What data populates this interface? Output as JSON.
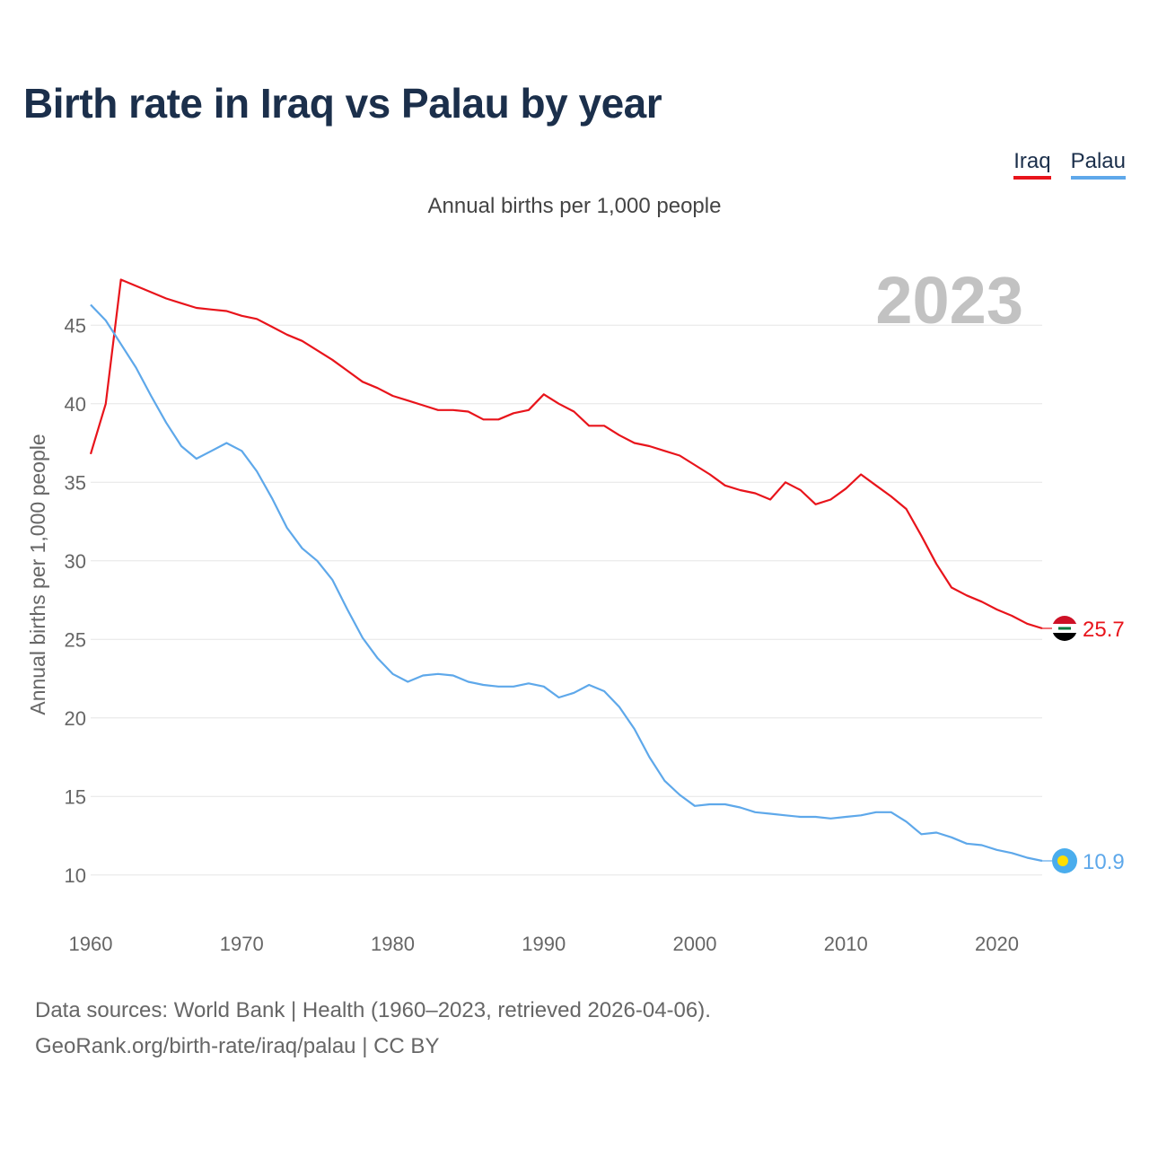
{
  "title": "Birth rate in Iraq vs Palau by year",
  "subtitle": "Annual births per 1,000 people",
  "legend": [
    {
      "name": "Iraq",
      "color": "#e8141b"
    },
    {
      "name": "Palau",
      "color": "#5ea8ea"
    }
  ],
  "year_label": "2023",
  "footer": {
    "line1": "Data sources: World Bank | Health (1960–2023, retrieved 2026-04-06).",
    "line2": "GeoRank.org/birth-rate/iraq/palau | CC BY"
  },
  "chart_data": {
    "type": "line",
    "title": "Birth rate in Iraq vs Palau by year",
    "ylabel": "Annual births per 1,000 people",
    "xlabel": "",
    "xlim": [
      1960,
      2023
    ],
    "ylim": [
      8.5,
      48.5
    ],
    "yticks": [
      10,
      15,
      20,
      25,
      30,
      35,
      40,
      45
    ],
    "xticks": [
      1960,
      1970,
      1980,
      1990,
      2000,
      2010,
      2020
    ],
    "grid": true,
    "x": [
      1960,
      1961,
      1962,
      1963,
      1964,
      1965,
      1966,
      1967,
      1968,
      1969,
      1970,
      1971,
      1972,
      1973,
      1974,
      1975,
      1976,
      1977,
      1978,
      1979,
      1980,
      1981,
      1982,
      1983,
      1984,
      1985,
      1986,
      1987,
      1988,
      1989,
      1990,
      1991,
      1992,
      1993,
      1994,
      1995,
      1996,
      1997,
      1998,
      1999,
      2000,
      2001,
      2002,
      2003,
      2004,
      2005,
      2006,
      2007,
      2008,
      2009,
      2010,
      2011,
      2012,
      2013,
      2014,
      2015,
      2016,
      2017,
      2018,
      2019,
      2020,
      2021,
      2022,
      2023
    ],
    "series": [
      {
        "name": "Iraq",
        "color": "#e8141b",
        "end_label": "25.7",
        "values": [
          36.8,
          40.0,
          47.9,
          47.5,
          47.1,
          46.7,
          46.4,
          46.1,
          46.0,
          45.9,
          45.6,
          45.4,
          44.9,
          44.4,
          44.0,
          43.4,
          42.8,
          42.1,
          41.4,
          41.0,
          40.5,
          40.2,
          39.9,
          39.6,
          39.6,
          39.5,
          39.0,
          39.0,
          39.4,
          39.6,
          40.6,
          40.0,
          39.5,
          38.6,
          38.6,
          38.0,
          37.5,
          37.3,
          37.0,
          36.7,
          36.1,
          35.5,
          34.8,
          34.5,
          34.3,
          33.9,
          35.0,
          34.5,
          33.6,
          33.9,
          34.6,
          35.5,
          34.8,
          34.1,
          33.3,
          31.6,
          29.8,
          28.3,
          27.8,
          27.4,
          26.9,
          26.5,
          26.0,
          25.7
        ]
      },
      {
        "name": "Palau",
        "color": "#5ea8ea",
        "end_label": "10.9",
        "values": [
          46.3,
          45.3,
          43.8,
          42.3,
          40.5,
          38.8,
          37.3,
          36.5,
          37.0,
          37.5,
          37.0,
          35.7,
          34.0,
          32.1,
          30.8,
          30.0,
          28.8,
          26.9,
          25.1,
          23.8,
          22.8,
          22.3,
          22.7,
          22.8,
          22.7,
          22.3,
          22.1,
          22.0,
          22.0,
          22.2,
          22.0,
          21.3,
          21.6,
          22.1,
          21.7,
          20.7,
          19.3,
          17.5,
          16.0,
          15.1,
          14.4,
          14.5,
          14.5,
          14.3,
          14.0,
          13.9,
          13.8,
          13.7,
          13.7,
          13.6,
          13.7,
          13.8,
          14.0,
          14.0,
          13.4,
          12.6,
          12.7,
          12.4,
          12.0,
          11.9,
          11.6,
          11.4,
          11.1,
          10.9
        ]
      }
    ]
  }
}
